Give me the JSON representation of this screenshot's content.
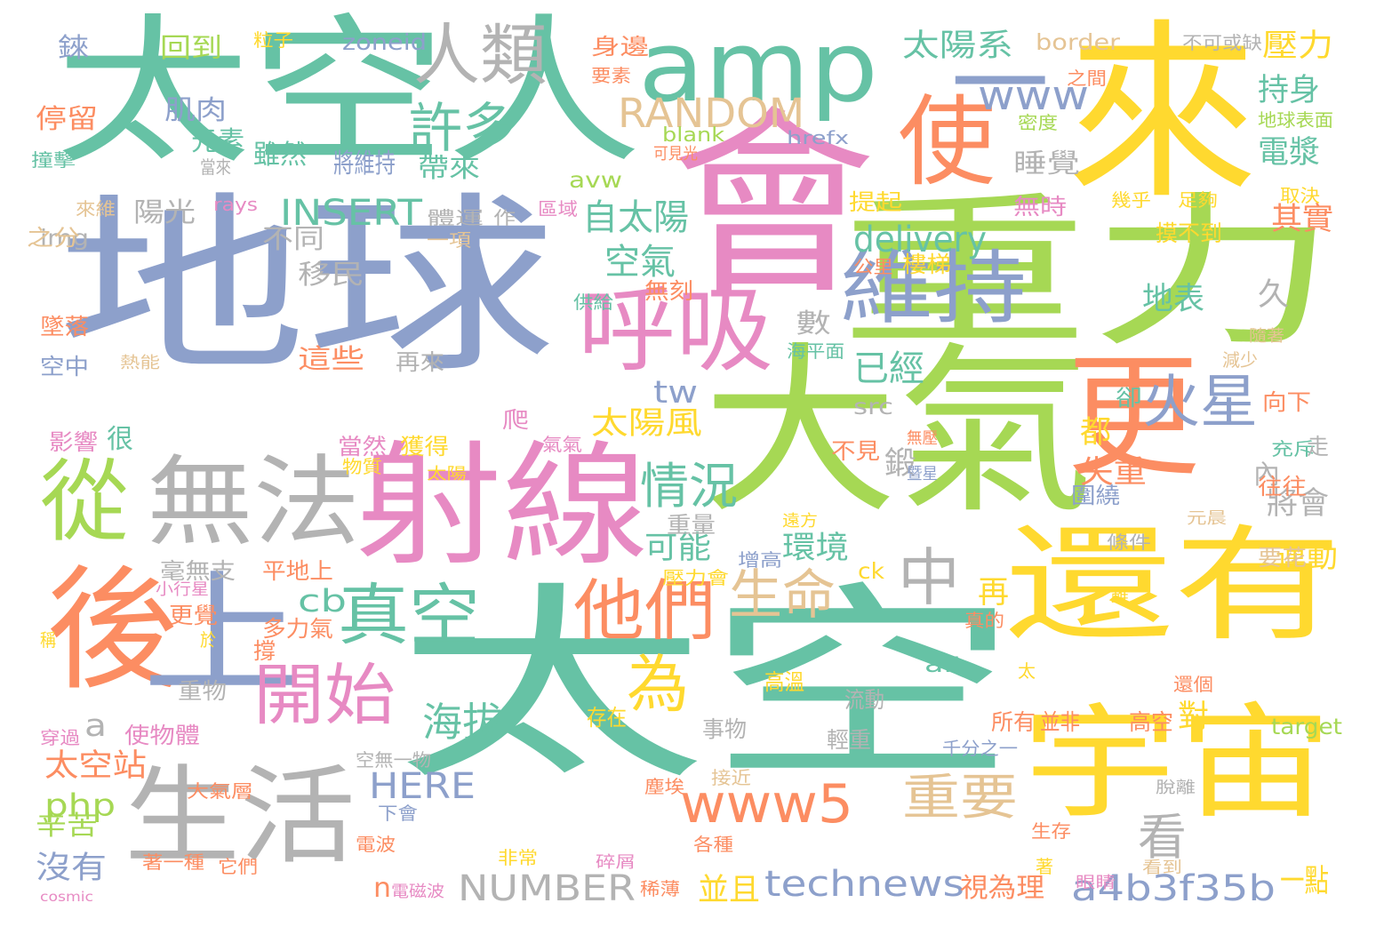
{
  "palette": {
    "green": "#66c2a5",
    "orange": "#fc8d62",
    "blue": "#8da0cb",
    "pink": "#e78ac3",
    "lime": "#a6d854",
    "yellow": "#ffd92f",
    "tan": "#e5c494",
    "gray": "#b3b3b3"
  },
  "words": [
    "太空",
    "地球",
    "太空人",
    "會",
    "來",
    "大氣",
    "重力",
    "射線",
    "還有",
    "宇宙",
    "後",
    "上",
    "更",
    "使",
    "呼吸",
    "從",
    "無法",
    "生活",
    "amp",
    "一",
    "維持",
    "他們",
    "真空",
    "開始",
    "火星",
    "人類",
    "中",
    "為",
    "許多",
    "生命",
    "www5",
    "情況",
    "重要",
    "看",
    "海拔",
    "太陽系",
    "壓力",
    "www",
    "RANDOM",
    "持身",
    "電漿",
    "睡覺",
    "delivery",
    "INSERT",
    "空氣",
    "自太陽",
    "已經",
    "其實",
    "地表",
    "technews",
    "a4b3f35b",
    "NUMBER",
    "HERE",
    "太空站",
    "沒有",
    "php",
    "cb",
    "tw",
    "太陽風",
    "失重",
    "環境",
    "可能",
    "運動",
    "將會",
    "並且",
    "一點",
    "視為理",
    "肌肉",
    "元素",
    "雖然",
    "將維持",
    "帶來",
    "陽光",
    "不同",
    "移民",
    "數",
    "這些",
    "很",
    "再來",
    "久",
    "都",
    "鍛",
    "內",
    "往往",
    "圍繞",
    "要花",
    "對",
    "再",
    "毫無支",
    "平地上",
    "更覺",
    "重物",
    "使物體",
    "多力氣",
    "撐",
    "回到",
    "停留",
    "錸",
    "粒子",
    "zoneid",
    "border",
    "不可或缺",
    "身邊",
    "要素",
    "之間",
    "密度",
    "地球表面",
    "blank",
    "hrefx",
    "可見光",
    "avw",
    "區域",
    "幾乎",
    "足夠",
    "取決",
    "提起",
    "無時",
    "摸不到",
    "樓梯",
    "公里",
    "供給",
    "無刻",
    "img",
    "之分",
    "一項",
    "體運",
    "作",
    "rays",
    "來維",
    "撞擊",
    "當來",
    "墜落",
    "空中",
    "熱能",
    "海平面",
    "隨著",
    "減少",
    "卻",
    "向下",
    "src",
    "不見",
    "充斥",
    "走",
    "影響",
    "當然",
    "獲得",
    "氣氣",
    "物質",
    "太陽",
    "爬",
    "無壓",
    "暨星",
    "遠方",
    "元晨",
    "條件",
    "重量",
    "增高",
    "ck",
    "壓力會",
    "小行星",
    "稱",
    "於",
    "真的",
    "alt",
    "太",
    "高溫",
    "流動",
    "還個",
    "存在",
    "所有",
    "並非",
    "高空",
    "target",
    "事物",
    "輕重",
    "穿過",
    "空無一物",
    "千分之一",
    "塵埃",
    "接近",
    "大氣層",
    "下會",
    "辛苦",
    "電波",
    "生存",
    "各種",
    "稀薄",
    "非常",
    "著一種",
    "它們",
    "著",
    "眼睛",
    "n",
    "電磁波",
    "cosmic",
    "a",
    "碎屑",
    "看到",
    "脫離",
    "雖"
  ]
}
